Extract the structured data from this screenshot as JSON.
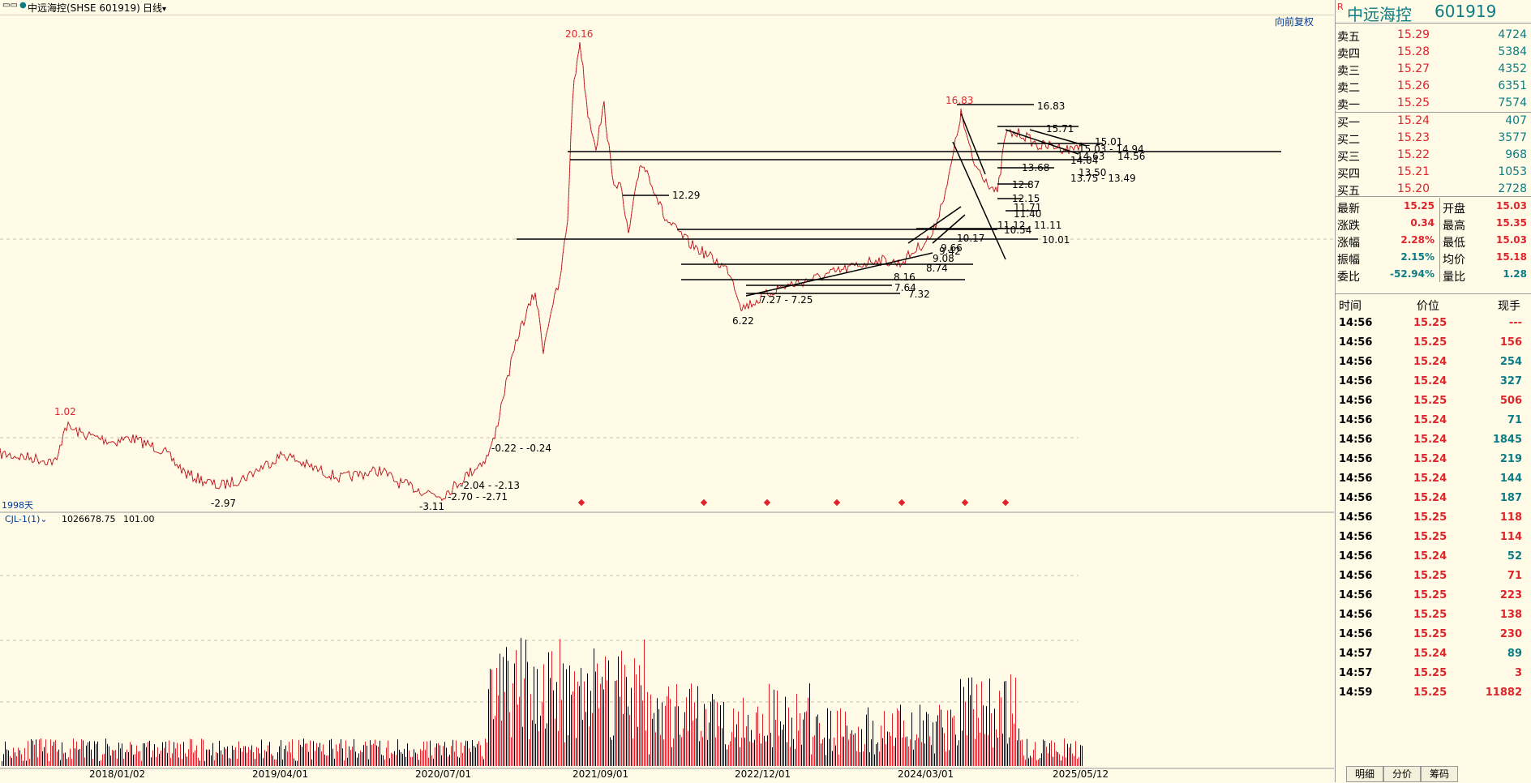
{
  "topbar": {
    "window_icon": "restore-icon",
    "title": "中远海控(SHSE 601919)",
    "period": "日线",
    "restore_label": "向前复权"
  },
  "chart": {
    "period_days": "1998天",
    "indicator_name": "CJL-1(1)",
    "indicator_value_1": "1026678.75",
    "indicator_value_2": "101.00",
    "x_ticks": [
      "2018/01/02",
      "2019/04/01",
      "2020/07/01",
      "2021/09/01",
      "2022/12/01",
      "2024/03/01",
      "2025/05/12"
    ],
    "price_labels": {
      "peak_2021": "20.16",
      "peak_2018": "1.02",
      "peak_2024": "16.83",
      "low_2018": "-2.97",
      "low_2020": "-3.11",
      "low_2022": "6.22"
    },
    "range_labels": {
      "r_m022": "-0.22 - -0.24",
      "r_m204": "-2.04 - -2.13",
      "r_m270": "-2.70 - -2.71",
      "r_1229": "12.29",
      "r_1683": "16.83",
      "r_1571": "15.71",
      "r_1501": "15.01",
      "r_1503": "15.03 - 14.94",
      "r_1463": "14.63",
      "r_1456": "14.56",
      "r_1404": "14.04",
      "r_1368": "13.68",
      "r_1350": "13.50",
      "r_1375": "13.75 - 13.49",
      "r_1287": "12.87",
      "r_1215": "12.15",
      "r_1171": "11.71",
      "r_1140": "11.40",
      "r_1112": "11.12",
      "r_1111": "11.11",
      "r_1054": "10.54",
      "r_1001": "10.01",
      "r_1017": "10.17",
      "r_966": "9.66",
      "r_942": "9.42",
      "r_908": "9.08",
      "r_874": "8.74",
      "r_764": "7.64",
      "r_732": "7.32",
      "r_727": "7.27 - 7.25",
      "r_816": "8.16"
    }
  },
  "quote": {
    "name": "中远海控",
    "code": "601919",
    "badge": "R",
    "asks": [
      {
        "label": "卖五",
        "price": "15.29",
        "vol": "4724"
      },
      {
        "label": "卖四",
        "price": "15.28",
        "vol": "5384"
      },
      {
        "label": "卖三",
        "price": "15.27",
        "vol": "4352"
      },
      {
        "label": "卖二",
        "price": "15.26",
        "vol": "6351"
      },
      {
        "label": "卖一",
        "price": "15.25",
        "vol": "7574"
      }
    ],
    "bids": [
      {
        "label": "买一",
        "price": "15.24",
        "vol": "407"
      },
      {
        "label": "买二",
        "price": "15.23",
        "vol": "3577"
      },
      {
        "label": "买三",
        "price": "15.22",
        "vol": "968"
      },
      {
        "label": "买四",
        "price": "15.21",
        "vol": "1053"
      },
      {
        "label": "买五",
        "price": "15.20",
        "vol": "2728"
      }
    ],
    "stats": [
      {
        "l1": "最新",
        "v1": "15.25",
        "l2": "开盘",
        "v2": "15.03"
      },
      {
        "l1": "涨跌",
        "v1": "0.34",
        "l2": "最高",
        "v2": "15.35"
      },
      {
        "l1": "涨幅",
        "v1": "2.28%",
        "l2": "最低",
        "v2": "15.03"
      },
      {
        "l1": "振幅",
        "v1": "2.15%",
        "l2": "均价",
        "v2": "15.18"
      },
      {
        "l1": "委比",
        "v1": "-52.94%",
        "l2": "量比",
        "v2": "1.28"
      }
    ]
  },
  "trades": {
    "headers": [
      "时间",
      "价位",
      "现手"
    ],
    "rows": [
      {
        "t": "14:56",
        "p": "15.25",
        "v": "---",
        "c": "red"
      },
      {
        "t": "14:56",
        "p": "15.25",
        "v": "156",
        "c": "red"
      },
      {
        "t": "14:56",
        "p": "15.24",
        "v": "254",
        "c": "teal"
      },
      {
        "t": "14:56",
        "p": "15.24",
        "v": "327",
        "c": "teal"
      },
      {
        "t": "14:56",
        "p": "15.25",
        "v": "506",
        "c": "red"
      },
      {
        "t": "14:56",
        "p": "15.24",
        "v": "71",
        "c": "teal"
      },
      {
        "t": "14:56",
        "p": "15.24",
        "v": "1845",
        "c": "teal"
      },
      {
        "t": "14:56",
        "p": "15.24",
        "v": "219",
        "c": "teal"
      },
      {
        "t": "14:56",
        "p": "15.24",
        "v": "144",
        "c": "teal"
      },
      {
        "t": "14:56",
        "p": "15.24",
        "v": "187",
        "c": "teal"
      },
      {
        "t": "14:56",
        "p": "15.25",
        "v": "118",
        "c": "red"
      },
      {
        "t": "14:56",
        "p": "15.25",
        "v": "114",
        "c": "red"
      },
      {
        "t": "14:56",
        "p": "15.24",
        "v": "52",
        "c": "teal"
      },
      {
        "t": "14:56",
        "p": "15.25",
        "v": "71",
        "c": "red"
      },
      {
        "t": "14:56",
        "p": "15.25",
        "v": "223",
        "c": "red"
      },
      {
        "t": "14:56",
        "p": "15.25",
        "v": "138",
        "c": "red"
      },
      {
        "t": "14:56",
        "p": "15.25",
        "v": "230",
        "c": "red"
      },
      {
        "t": "14:57",
        "p": "15.24",
        "v": "89",
        "c": "teal"
      },
      {
        "t": "14:57",
        "p": "15.25",
        "v": "3",
        "c": "red"
      },
      {
        "t": "14:59",
        "p": "15.25",
        "v": "11882",
        "c": "red"
      }
    ]
  },
  "tabs": [
    "明细",
    "分价",
    "筹码"
  ],
  "colors": {
    "up": "#e0242b",
    "down": "#0b7d86",
    "bg": "#fffbe7"
  }
}
